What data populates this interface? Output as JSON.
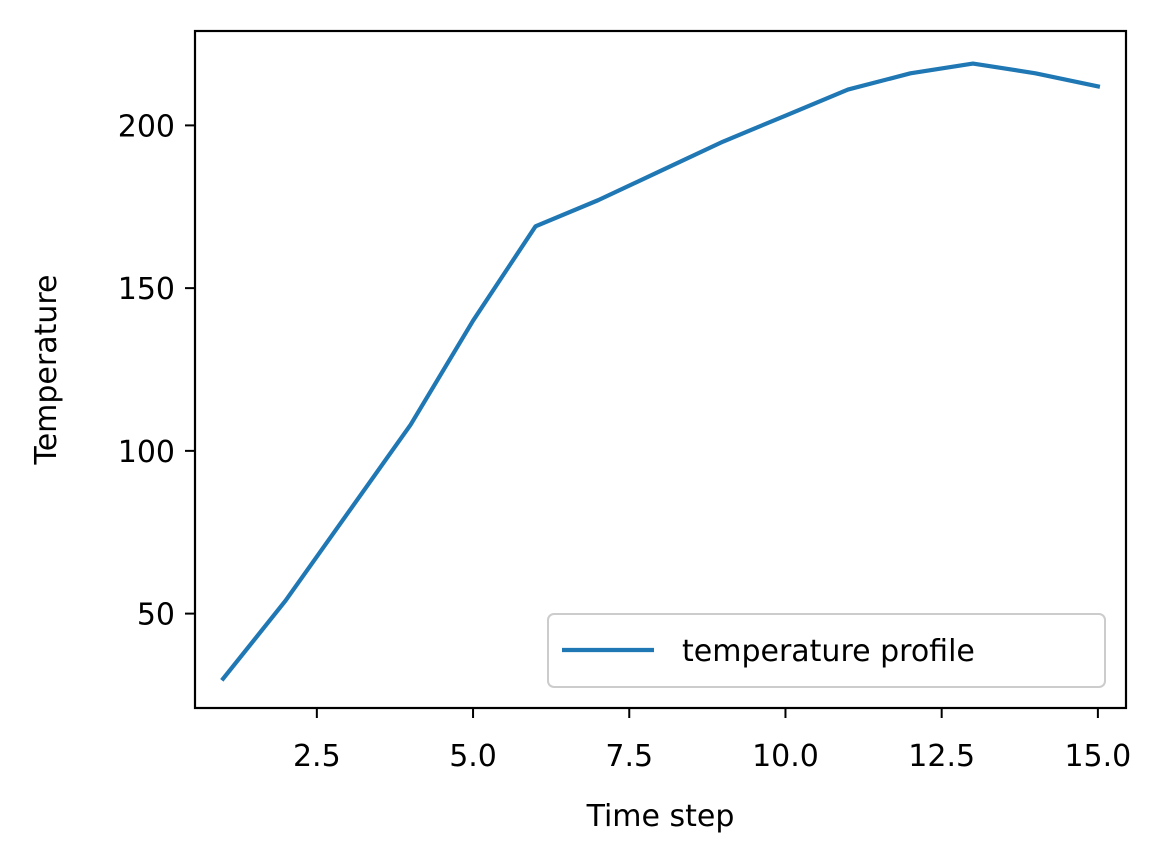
{
  "chart_data": {
    "type": "line",
    "title": "",
    "xlabel": "Time step",
    "ylabel": "Temperature",
    "xlim": [
      0.55,
      15.45
    ],
    "ylim": [
      21,
      229
    ],
    "xticks": [
      2.5,
      5.0,
      7.5,
      10.0,
      12.5,
      15.0
    ],
    "xtick_labels": [
      "2.5",
      "5.0",
      "7.5",
      "10.0",
      "12.5",
      "15.0"
    ],
    "yticks": [
      50,
      100,
      150,
      200
    ],
    "ytick_labels": [
      "50",
      "100",
      "150",
      "200"
    ],
    "grid": false,
    "legend_position": "lower right",
    "x": [
      1,
      2,
      3,
      4,
      5,
      6,
      7,
      8,
      9,
      10,
      11,
      12,
      13,
      14,
      15
    ],
    "series": [
      {
        "name": "temperature profile",
        "color": "#1f77b4",
        "values": [
          30,
          54,
          81,
          108,
          140,
          169,
          177,
          186,
          195,
          203,
          211,
          216,
          219,
          216,
          212
        ]
      }
    ]
  }
}
